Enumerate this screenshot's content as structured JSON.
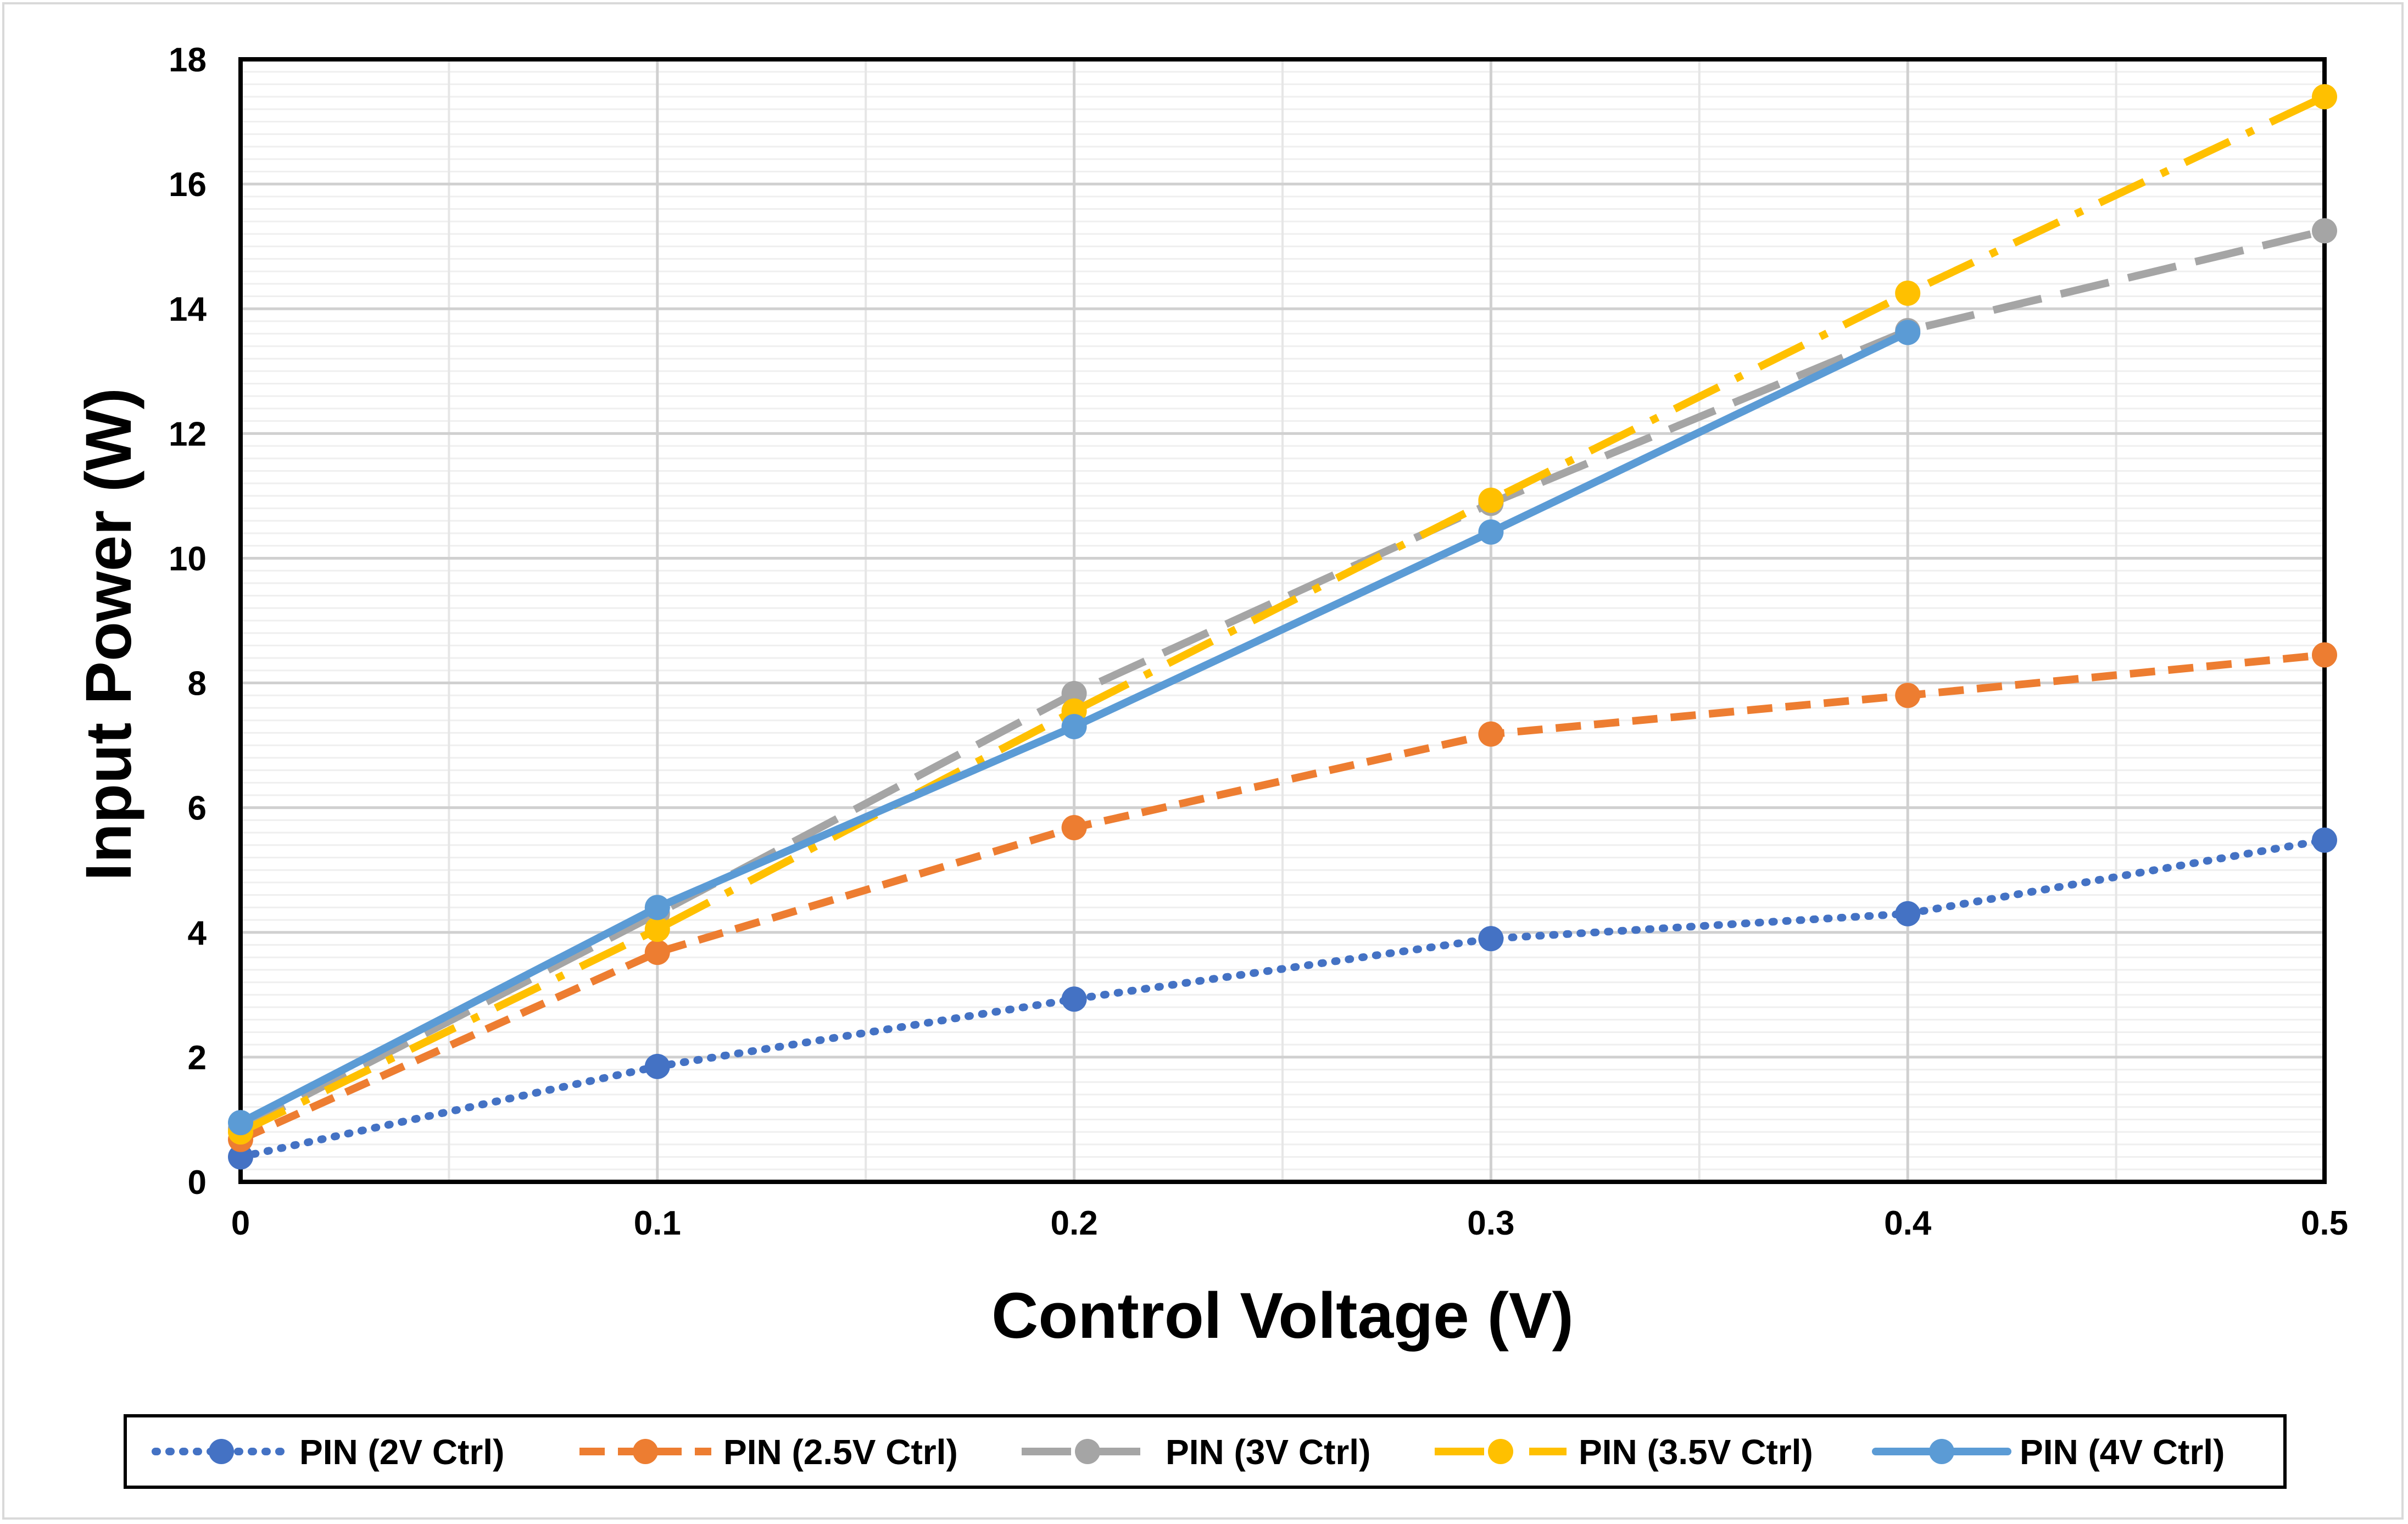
{
  "chart_data": {
    "type": "line",
    "title": "",
    "xlabel": "Control Voltage (V)",
    "ylabel": "Input Power (W)",
    "xlim": [
      0,
      0.5
    ],
    "ylim": [
      0,
      18
    ],
    "x_ticks": [
      "0",
      "0.1",
      "0.2",
      "0.3",
      "0.4",
      "0.5"
    ],
    "y_ticks": [
      "0",
      "2",
      "4",
      "6",
      "8",
      "10",
      "12",
      "14",
      "16",
      "18"
    ],
    "grid": true,
    "legend_position": "bottom",
    "series": [
      {
        "name": "PIN (2V Ctrl)",
        "color": "#4472C4",
        "style": "dotted",
        "x": [
          0,
          0.1,
          0.2,
          0.3,
          0.4,
          0.5
        ],
        "y": [
          0.4,
          1.85,
          2.93,
          3.9,
          4.3,
          5.48
        ]
      },
      {
        "name": "PIN (2.5V Ctrl)",
        "color": "#ED7D31",
        "style": "dashed",
        "x": [
          0,
          0.1,
          0.2,
          0.3,
          0.4,
          0.5
        ],
        "y": [
          0.68,
          3.68,
          5.68,
          7.18,
          7.8,
          8.45
        ]
      },
      {
        "name": "PIN (3V Ctrl)",
        "color": "#A5A5A5",
        "style": "long-dash",
        "x": [
          0,
          0.1,
          0.2,
          0.3,
          0.4,
          0.5
        ],
        "y": [
          0.85,
          4.3,
          7.83,
          10.88,
          13.65,
          15.25
        ]
      },
      {
        "name": "PIN (3.5V Ctrl)",
        "color": "#FFC000",
        "style": "dash-dot",
        "x": [
          0,
          0.1,
          0.2,
          0.3,
          0.4,
          0.5
        ],
        "y": [
          0.8,
          4.05,
          7.55,
          10.93,
          14.25,
          17.4
        ]
      },
      {
        "name": "PIN (4V Ctrl)",
        "color": "#5B9BD5",
        "style": "solid",
        "x": [
          0,
          0.1,
          0.2,
          0.3,
          0.4
        ],
        "y": [
          0.95,
          4.4,
          7.3,
          10.42,
          13.62
        ]
      }
    ]
  }
}
